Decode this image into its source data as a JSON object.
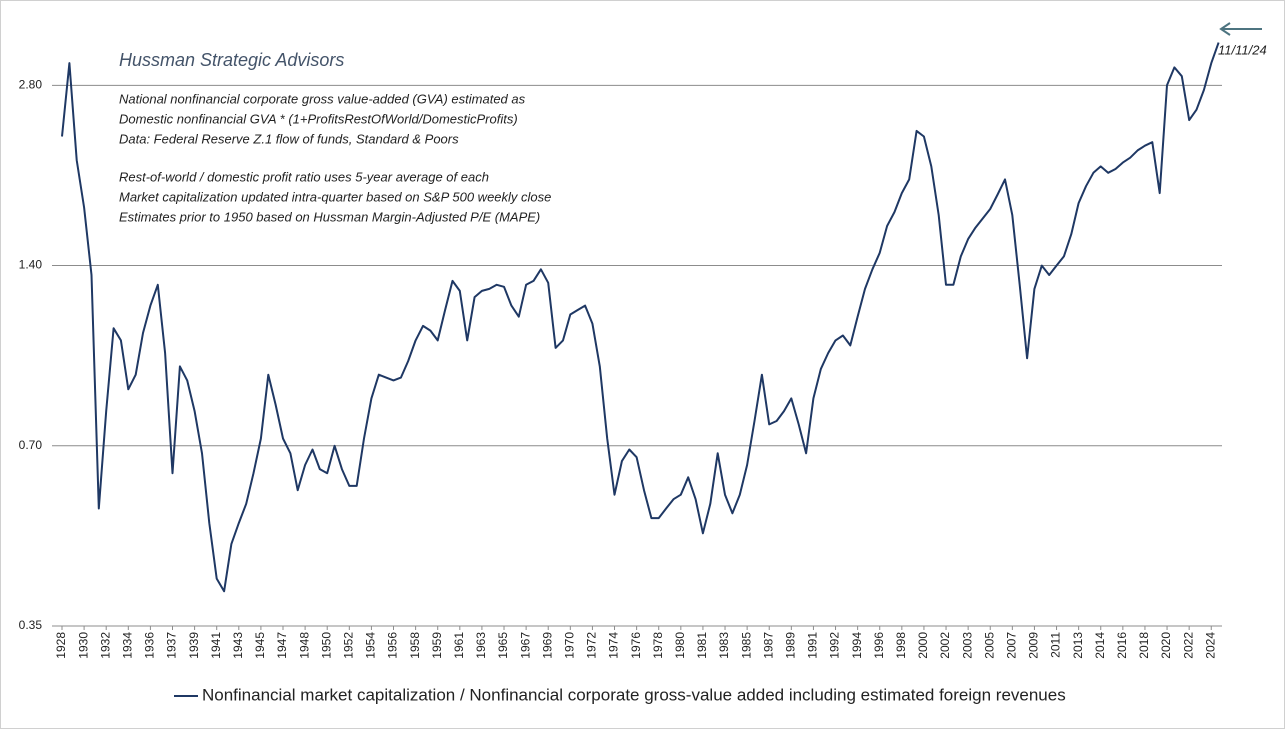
{
  "chart_data": {
    "type": "line",
    "title": "Hussman Strategic Advisors",
    "notes": [
      "National nonfinancial corporate gross value-added (GVA) estimated as",
      "Domestic nonfinancial GVA * (1+ProfitsRestOfWorld/DomesticProfits)",
      "Data: Federal Reserve Z.1 flow of funds, Standard & Poors",
      "Rest-of-world / domestic profit ratio uses 5-year average of each",
      "Market capitalization updated intra-quarter based on S&P 500 weekly close",
      "Estimates prior to 1950 based on Hussman Margin-Adjusted P/E (MAPE)"
    ],
    "annotation": "11/11/24",
    "log_scale": true,
    "grid": true,
    "ylim": [
      0.35,
      3.6
    ],
    "yticks": [
      0.35,
      {
        "value": 0.7,
        "label": "0.70"
      },
      {
        "value": 1.4,
        "label": "1.40"
      },
      {
        "value": 2.8,
        "label": "2.80"
      }
    ],
    "categories": [
      "1928",
      null,
      null,
      "1930",
      null,
      null,
      "1932",
      null,
      null,
      "1934",
      null,
      null,
      "1936",
      null,
      null,
      "1937",
      null,
      null,
      "1939",
      null,
      null,
      "1941",
      null,
      null,
      "1943",
      null,
      null,
      "1945",
      null,
      null,
      "1947",
      null,
      null,
      "1948",
      null,
      null,
      "1950",
      null,
      null,
      "1952",
      null,
      null,
      "1954",
      null,
      null,
      "1956",
      null,
      null,
      "1958",
      null,
      null,
      "1959",
      null,
      null,
      "1961",
      null,
      null,
      "1963",
      null,
      null,
      "1965",
      null,
      null,
      "1967",
      null,
      null,
      "1969",
      null,
      null,
      "1970",
      null,
      null,
      "1972",
      null,
      null,
      "1974",
      null,
      null,
      "1976",
      null,
      null,
      "1978",
      null,
      null,
      "1980",
      null,
      null,
      "1981",
      null,
      null,
      "1983",
      null,
      null,
      "1985",
      null,
      null,
      "1987",
      null,
      null,
      "1989",
      null,
      null,
      "1991",
      null,
      null,
      "1992",
      null,
      null,
      "1994",
      null,
      null,
      "1996",
      null,
      null,
      "1998",
      null,
      null,
      "2000",
      null,
      null,
      "2002",
      null,
      null,
      "2003",
      null,
      null,
      "2005",
      null,
      null,
      "2007",
      null,
      null,
      "2009",
      null,
      null,
      "2011",
      null,
      null,
      "2013",
      null,
      null,
      "2014",
      null,
      null,
      "2016",
      null,
      null,
      "2018",
      null,
      null,
      "2020",
      null,
      null,
      "2022",
      null,
      null,
      "2024",
      null
    ],
    "series": [
      {
        "name": "Nonfinancial market capitalization / Nonfinancial corporate gross-value added including estimated foreign revenues",
        "color": "#1f3864",
        "values": [
          2.3,
          3.05,
          2.1,
          1.75,
          1.35,
          0.55,
          0.8,
          1.1,
          1.05,
          0.87,
          0.92,
          1.08,
          1.2,
          1.3,
          1.0,
          0.63,
          0.95,
          0.9,
          0.8,
          0.68,
          0.52,
          0.42,
          0.4,
          0.48,
          0.52,
          0.56,
          0.63,
          0.72,
          0.92,
          0.82,
          0.72,
          0.68,
          0.59,
          0.65,
          0.69,
          0.64,
          0.63,
          0.7,
          0.64,
          0.6,
          0.6,
          0.72,
          0.84,
          0.92,
          0.91,
          0.9,
          0.91,
          0.97,
          1.05,
          1.11,
          1.09,
          1.05,
          1.18,
          1.32,
          1.27,
          1.05,
          1.24,
          1.27,
          1.28,
          1.3,
          1.29,
          1.2,
          1.15,
          1.3,
          1.32,
          1.38,
          1.31,
          1.02,
          1.05,
          1.16,
          1.18,
          1.2,
          1.12,
          0.95,
          0.72,
          0.58,
          0.66,
          0.69,
          0.67,
          0.59,
          0.53,
          0.53,
          0.55,
          0.57,
          0.58,
          0.62,
          0.57,
          0.5,
          0.56,
          0.68,
          0.58,
          0.54,
          0.58,
          0.65,
          0.77,
          0.92,
          0.76,
          0.77,
          0.8,
          0.84,
          0.76,
          0.68,
          0.84,
          0.94,
          1.0,
          1.05,
          1.07,
          1.03,
          1.15,
          1.28,
          1.38,
          1.47,
          1.63,
          1.72,
          1.85,
          1.95,
          2.35,
          2.3,
          2.05,
          1.7,
          1.3,
          1.3,
          1.45,
          1.55,
          1.62,
          1.68,
          1.74,
          1.84,
          1.95,
          1.7,
          1.3,
          0.98,
          1.28,
          1.4,
          1.35,
          1.4,
          1.45,
          1.58,
          1.78,
          1.9,
          2.0,
          2.05,
          2.0,
          2.03,
          2.08,
          2.12,
          2.18,
          2.22,
          2.25,
          1.85,
          2.8,
          3.0,
          2.9,
          2.45,
          2.55,
          2.75,
          3.05,
          3.3
        ]
      }
    ]
  }
}
